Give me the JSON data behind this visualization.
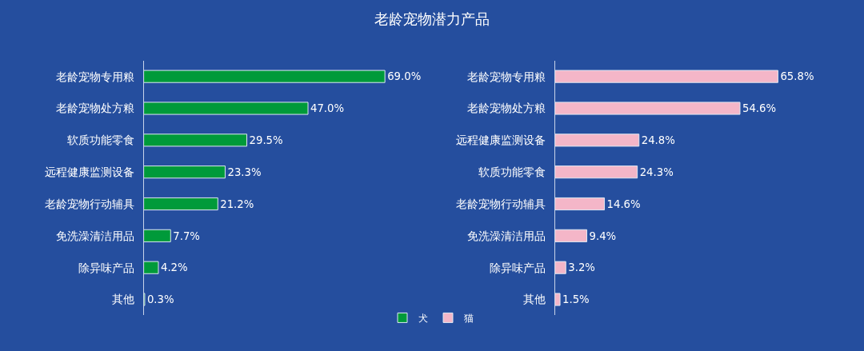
{
  "chart_data": [
    {
      "type": "bar",
      "orientation": "horizontal",
      "title": "老龄宠物潜力产品",
      "categories": [
        "老龄宠物专用粮",
        "老龄宠物处方粮",
        "软质功能零食",
        "远程健康监测设备",
        "老龄宠物行动辅具",
        "免洗澡清洁用品",
        "除异味产品",
        "其他"
      ],
      "series": [
        {
          "name": "犬",
          "color": "#009a3a",
          "values": [
            69.0,
            47.0,
            29.5,
            23.3,
            21.2,
            7.7,
            4.2,
            0.3
          ],
          "value_labels": [
            "69.0%",
            "47.0%",
            "29.5%",
            "23.3%",
            "21.2%",
            "7.7%",
            "4.2%",
            "0.3%"
          ]
        }
      ],
      "tick_labels": "y",
      "grid": false,
      "legend": "bottom right"
    },
    {
      "type": "bar",
      "orientation": "horizontal",
      "categories": [
        "老龄宠物专用粮",
        "老龄宠物处方粮",
        "远程健康监测设备",
        "软质功能零食",
        "老龄宠物行动辅具",
        "免洗澡清洁用品",
        "除异味产品",
        "其他"
      ],
      "series": [
        {
          "name": "猫",
          "color": "#f4b6c8",
          "values": [
            65.8,
            54.6,
            24.8,
            24.3,
            14.6,
            9.4,
            3.2,
            1.5
          ],
          "value_labels": [
            "65.8%",
            "54.6%",
            "24.8%",
            "24.3%",
            "14.6%",
            "9.4%",
            "3.2%",
            "1.5%"
          ]
        }
      ],
      "tick_labels": "y",
      "grid": false,
      "legend": "bottom left"
    }
  ]
}
